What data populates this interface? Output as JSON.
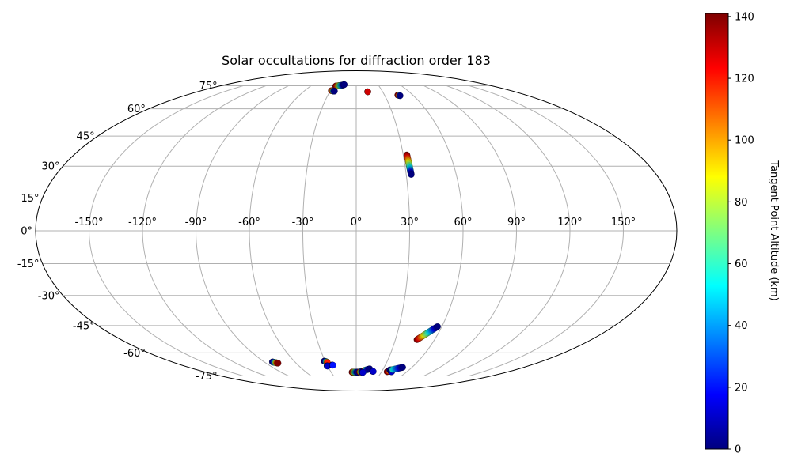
{
  "chart_data": {
    "type": "scatter",
    "projection": "mollweide",
    "title": "Solar occultations for diffraction order 183",
    "xlabel": "",
    "ylabel": "",
    "xlim": [
      -180,
      180
    ],
    "ylim": [
      -90,
      90
    ],
    "grid": true,
    "lon_ticks": [
      -150,
      -120,
      -90,
      -60,
      -30,
      0,
      30,
      60,
      90,
      120,
      150
    ],
    "lon_tick_labels": [
      "-150°",
      "-120°",
      "-90°",
      "-60°",
      "-30°",
      "0°",
      "30°",
      "60°",
      "90°",
      "120°",
      "150°"
    ],
    "lat_ticks": [
      -75,
      -60,
      -45,
      -30,
      -15,
      0,
      15,
      30,
      45,
      60,
      75
    ],
    "lat_tick_labels": [
      "-75°",
      "-60°",
      "-45°",
      "-30°",
      "-15°",
      "0°",
      "15°",
      "30°",
      "45°",
      "60°",
      "75°"
    ],
    "colorbar": {
      "label": "Tangent Point Altitude (km)",
      "colormap": "jet",
      "min": 0,
      "max": 141,
      "ticks": [
        0,
        20,
        40,
        60,
        80,
        100,
        120,
        140
      ],
      "tick_labels": [
        "0",
        "20",
        "40",
        "60",
        "80",
        "100",
        "120",
        "140"
      ],
      "location": "right"
    },
    "tracks": [
      {
        "points": [
          [
            -27,
            74.8,
            141
          ],
          [
            -25.5,
            74.9,
            120
          ],
          [
            -24,
            75.0,
            100
          ],
          [
            -22.5,
            75.1,
            80
          ],
          [
            -21,
            75.2,
            60
          ],
          [
            -19.5,
            75.4,
            40
          ],
          [
            -18,
            75.6,
            20
          ],
          [
            -16.5,
            75.9,
            0
          ]
        ]
      },
      {
        "points": [
          [
            -29,
            71.5,
            141
          ],
          [
            -27,
            71.3,
            100
          ],
          [
            -26,
            71.2,
            40
          ],
          [
            -25,
            71.2,
            0
          ]
        ]
      },
      {
        "points": [
          [
            13,
            70.8,
            141
          ],
          [
            13.1,
            70.7,
            130
          ]
        ]
      },
      {
        "points": [
          [
            44,
            68.5,
            141
          ],
          [
            45,
            68.3,
            120
          ],
          [
            46,
            68.1,
            0
          ]
        ]
      },
      {
        "points": [
          [
            32.3,
            35.5,
            141
          ],
          [
            32.4,
            34.0,
            120
          ],
          [
            32.5,
            32.5,
            100
          ],
          [
            32.6,
            31.0,
            80
          ],
          [
            32.7,
            29.5,
            60
          ],
          [
            32.8,
            28.2,
            40
          ],
          [
            32.9,
            27.0,
            20
          ],
          [
            33.0,
            26.0,
            0
          ]
        ]
      },
      {
        "points": [
          [
            46.5,
            -52.5,
            141
          ],
          [
            48,
            -51.5,
            120
          ],
          [
            49.5,
            -50.5,
            100
          ],
          [
            51,
            -49.5,
            80
          ],
          [
            52.5,
            -48.5,
            60
          ],
          [
            54,
            -47.5,
            40
          ],
          [
            55.5,
            -46.5,
            20
          ],
          [
            57,
            -45.5,
            0
          ]
        ]
      },
      {
        "points": [
          [
            -82,
            -65.5,
            0
          ],
          [
            -81,
            -65.7,
            20
          ],
          [
            -80,
            -65.9,
            60
          ],
          [
            -79,
            -66.1,
            100
          ],
          [
            -78,
            -66.3,
            141
          ]
        ]
      },
      {
        "points": [
          [
            -31,
            -65.0,
            0
          ],
          [
            -30,
            -65.2,
            10
          ],
          [
            -29,
            -65.5,
            60
          ],
          [
            -28.5,
            -65.9,
            120
          ]
        ]
      },
      {
        "points": [
          [
            -30.5,
            -68.0,
            0
          ],
          [
            -30,
            -68.2,
            10
          ]
        ]
      },
      {
        "points": [
          [
            -25,
            -67.5,
            0
          ],
          [
            -24,
            -67.6,
            20
          ]
        ]
      },
      {
        "points": [
          [
            -5,
            -72.3,
            141
          ],
          [
            -4,
            -72.3,
            120
          ],
          [
            -3,
            -72.3,
            100
          ],
          [
            -2,
            -72.3,
            80
          ],
          [
            -1,
            -72.3,
            60
          ],
          [
            0,
            -72.3,
            40
          ],
          [
            1,
            -72.3,
            20
          ],
          [
            2,
            -72.3,
            0
          ]
        ]
      },
      {
        "points": [
          [
            4,
            -72.2,
            141
          ],
          [
            5,
            -72.1,
            100
          ],
          [
            6,
            -72.0,
            60
          ],
          [
            7,
            -71.8,
            20
          ],
          [
            8,
            -72.2,
            0
          ]
        ]
      },
      {
        "points": [
          [
            9,
            -71.2,
            141
          ],
          [
            11,
            -70.8,
            60
          ],
          [
            13,
            -70.4,
            20
          ],
          [
            15,
            -70.0,
            0
          ]
        ]
      },
      {
        "points": [
          [
            7,
            -72.4,
            0
          ],
          [
            8,
            -72.5,
            10
          ]
        ]
      },
      {
        "points": [
          [
            19,
            -71.6,
            0
          ],
          [
            20,
            -71.8,
            10
          ]
        ]
      },
      {
        "points": [
          [
            36.5,
            -72.0,
            141
          ],
          [
            38,
            -71.6,
            120
          ],
          [
            40,
            -71.0,
            80
          ]
        ]
      },
      {
        "points": [
          [
            38,
            -70.8,
            0
          ],
          [
            40,
            -70.7,
            10
          ]
        ]
      },
      {
        "points": [
          [
            41,
            -71.9,
            0
          ],
          [
            42,
            -72.0,
            10
          ]
        ]
      },
      {
        "points": [
          [
            41,
            -70.5,
            60
          ],
          [
            44,
            -70.0,
            40
          ],
          [
            47,
            -69.5,
            20
          ],
          [
            50,
            -69.0,
            0
          ]
        ]
      }
    ]
  }
}
